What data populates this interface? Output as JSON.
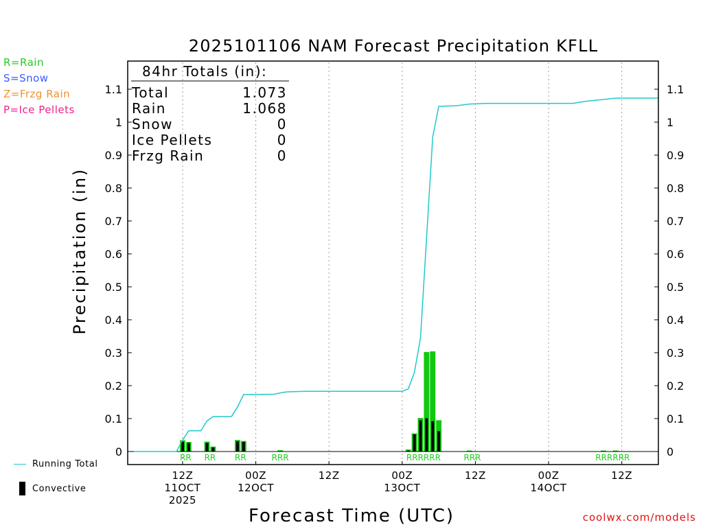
{
  "chart_data": {
    "type": "bar",
    "title": "2025101106 NAM Forecast Precipitation KFLL",
    "xlabel": "Forecast Time (UTC)",
    "ylabel": "Precipitation (in)",
    "ylim": [
      0,
      1.18
    ],
    "xlim_hours": [
      -3,
      84
    ],
    "yticks": [
      0,
      0.1,
      0.2,
      0.3,
      0.4,
      0.5,
      0.6,
      0.7,
      0.8,
      0.9,
      1,
      1.1
    ],
    "ytick_labels": [
      "0",
      "0.1",
      "0.2",
      "0.3",
      "0.4",
      "0.5",
      "0.6",
      "0.7",
      "0.8",
      "0.9",
      "1",
      "1.1"
    ],
    "xticks": [
      {
        "hour": 6,
        "lines": [
          "12Z",
          "11OCT",
          "2025"
        ]
      },
      {
        "hour": 18,
        "lines": [
          "00Z",
          "12OCT"
        ]
      },
      {
        "hour": 30,
        "lines": [
          "12Z"
        ]
      },
      {
        "hour": 42,
        "lines": [
          "00Z",
          "13OCT"
        ]
      },
      {
        "hour": 54,
        "lines": [
          "12Z"
        ]
      },
      {
        "hour": 66,
        "lines": [
          "00Z",
          "14OCT"
        ]
      },
      {
        "hour": 78,
        "lines": [
          "12Z"
        ]
      }
    ],
    "totals_box": {
      "heading": "84hr Totals (in):",
      "rows": [
        {
          "label": "Total",
          "value": "1.073"
        },
        {
          "label": "Rain",
          "value": "1.068"
        },
        {
          "label": "Snow",
          "value": "0"
        },
        {
          "label": "Ice Pellets",
          "value": "0"
        },
        {
          "label": "Frzg Rain",
          "value": "0"
        }
      ]
    },
    "series": [
      {
        "name": "Running Total",
        "type": "line",
        "color": "#20c8c8",
        "points": [
          [
            -2,
            0
          ],
          [
            5,
            0
          ],
          [
            6,
            0.035
          ],
          [
            7,
            0.063
          ],
          [
            9,
            0.063
          ],
          [
            10,
            0.093
          ],
          [
            11,
            0.106
          ],
          [
            14,
            0.106
          ],
          [
            15,
            0.135
          ],
          [
            16,
            0.173
          ],
          [
            21,
            0.174
          ],
          [
            22,
            0.178
          ],
          [
            23,
            0.181
          ],
          [
            26,
            0.183
          ],
          [
            41,
            0.183
          ],
          [
            42,
            0.183
          ],
          [
            43,
            0.19
          ],
          [
            44,
            0.24
          ],
          [
            45,
            0.345
          ],
          [
            46,
            0.65
          ],
          [
            47,
            0.955
          ],
          [
            48,
            1.048
          ],
          [
            51,
            1.05
          ],
          [
            53,
            1.055
          ],
          [
            56,
            1.057
          ],
          [
            64,
            1.057
          ],
          [
            70,
            1.057
          ],
          [
            72,
            1.063
          ],
          [
            77,
            1.073
          ],
          [
            84,
            1.073
          ]
        ]
      },
      {
        "name": "Precipitation",
        "type": "bar",
        "color": "#11c811",
        "bars": [
          [
            6,
            0.034
          ],
          [
            7,
            0.029
          ],
          [
            10,
            0.03
          ],
          [
            11,
            0.015
          ],
          [
            15,
            0.035
          ],
          [
            16,
            0.032
          ],
          [
            22,
            0.004
          ],
          [
            43,
            0.006
          ],
          [
            44,
            0.055
          ],
          [
            45,
            0.102
          ],
          [
            46,
            0.302
          ],
          [
            47,
            0.304
          ],
          [
            48,
            0.095
          ],
          [
            53,
            0.003
          ],
          [
            75,
            0.003
          ],
          [
            77,
            0.003
          ]
        ]
      },
      {
        "name": "Convective",
        "type": "bar",
        "color": "#000000",
        "bars": [
          [
            6,
            0.03
          ],
          [
            7,
            0.026
          ],
          [
            10,
            0.026
          ],
          [
            11,
            0.012
          ],
          [
            15,
            0.031
          ],
          [
            16,
            0.029
          ],
          [
            43,
            0.003
          ],
          [
            44,
            0.052
          ],
          [
            45,
            0.095
          ],
          [
            46,
            0.101
          ],
          [
            47,
            0.092
          ],
          [
            48,
            0.062
          ]
        ]
      }
    ],
    "ptype_markers": [
      {
        "hour": 6.5,
        "text": "RR"
      },
      {
        "hour": 10.5,
        "text": "RR"
      },
      {
        "hour": 15.5,
        "text": "RR"
      },
      {
        "hour": 22,
        "text": "RRR"
      },
      {
        "hour": 45.5,
        "text": "RRRRRR"
      },
      {
        "hour": 53.5,
        "text": "RRR"
      },
      {
        "hour": 76.5,
        "text": "RRRRRR"
      }
    ]
  },
  "ptype_legend": [
    {
      "label": "R=Rain",
      "color": "#22cc22"
    },
    {
      "label": "S=Snow",
      "color": "#3b5bff"
    },
    {
      "label": "Z=Frzg Rain",
      "color": "#f09030"
    },
    {
      "label": "P=Ice Pellets",
      "color": "#ee2288"
    }
  ],
  "bottom_legend": {
    "running_total_label": "Running Total",
    "convective_label": "Convective"
  },
  "credit": "coolwx.com/models"
}
